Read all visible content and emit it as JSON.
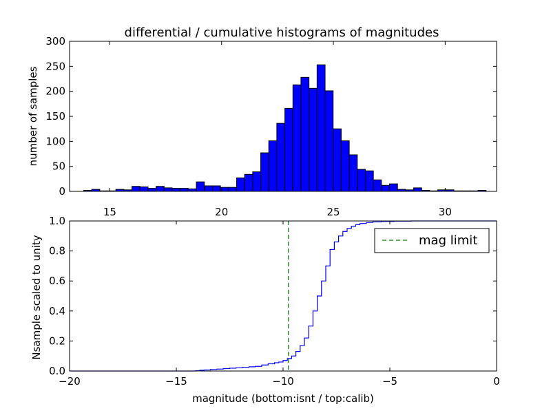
{
  "chart_data": [
    {
      "type": "bar",
      "title": "differential / cumulative histograms of magnitudes",
      "xlabel": "",
      "ylabel": "number of samples",
      "xlim": [
        13.2,
        32.3
      ],
      "ylim": [
        0,
        300
      ],
      "bar_color": "#0000ff",
      "bin_width": 0.36,
      "x_ticks": [
        15,
        20,
        25,
        30
      ],
      "y_ticks": [
        0,
        50,
        100,
        150,
        200,
        250,
        300
      ],
      "bins": [
        {
          "x": 13.83,
          "y": 2
        },
        {
          "x": 14.19,
          "y": 4
        },
        {
          "x": 14.55,
          "y": 1
        },
        {
          "x": 14.91,
          "y": 1
        },
        {
          "x": 15.27,
          "y": 4
        },
        {
          "x": 15.63,
          "y": 3
        },
        {
          "x": 15.99,
          "y": 10
        },
        {
          "x": 16.35,
          "y": 9
        },
        {
          "x": 16.71,
          "y": 6
        },
        {
          "x": 17.07,
          "y": 10
        },
        {
          "x": 17.43,
          "y": 7
        },
        {
          "x": 17.79,
          "y": 6
        },
        {
          "x": 18.15,
          "y": 6
        },
        {
          "x": 18.51,
          "y": 5
        },
        {
          "x": 18.87,
          "y": 19
        },
        {
          "x": 19.23,
          "y": 11
        },
        {
          "x": 19.59,
          "y": 11
        },
        {
          "x": 19.95,
          "y": 8
        },
        {
          "x": 20.31,
          "y": 8
        },
        {
          "x": 20.67,
          "y": 27
        },
        {
          "x": 21.03,
          "y": 34
        },
        {
          "x": 21.39,
          "y": 39
        },
        {
          "x": 21.75,
          "y": 77
        },
        {
          "x": 22.11,
          "y": 101
        },
        {
          "x": 22.47,
          "y": 136
        },
        {
          "x": 22.83,
          "y": 166
        },
        {
          "x": 23.19,
          "y": 213
        },
        {
          "x": 23.55,
          "y": 228
        },
        {
          "x": 23.91,
          "y": 206
        },
        {
          "x": 24.27,
          "y": 253
        },
        {
          "x": 24.63,
          "y": 201
        },
        {
          "x": 24.99,
          "y": 125
        },
        {
          "x": 25.35,
          "y": 101
        },
        {
          "x": 25.71,
          "y": 73
        },
        {
          "x": 26.07,
          "y": 44
        },
        {
          "x": 26.43,
          "y": 41
        },
        {
          "x": 26.79,
          "y": 23
        },
        {
          "x": 27.15,
          "y": 12
        },
        {
          "x": 27.51,
          "y": 15
        },
        {
          "x": 27.87,
          "y": 4
        },
        {
          "x": 28.23,
          "y": 3
        },
        {
          "x": 28.59,
          "y": 7
        },
        {
          "x": 28.95,
          "y": 2
        },
        {
          "x": 29.31,
          "y": 1
        },
        {
          "x": 29.67,
          "y": 3
        },
        {
          "x": 30.03,
          "y": 3
        },
        {
          "x": 30.39,
          "y": 1
        },
        {
          "x": 30.75,
          "y": 1
        },
        {
          "x": 31.11,
          "y": 1
        },
        {
          "x": 31.47,
          "y": 2
        }
      ]
    },
    {
      "type": "line",
      "title": "",
      "xlabel": "magnitude (bottom:isnt / top:calib)",
      "ylabel": "Nsample scaled to unity",
      "xlim": [
        -20,
        0
      ],
      "ylim": [
        0,
        1
      ],
      "x_ticks": [
        -20,
        -15,
        -10,
        -5,
        0
      ],
      "y_ticks": [
        0.0,
        0.2,
        0.4,
        0.6,
        0.8,
        1.0
      ],
      "x_tick_labels": [
        "−20",
        "−15",
        "−10",
        "−5",
        "0"
      ],
      "y_tick_labels": [
        "0.0",
        "0.2",
        "0.4",
        "0.6",
        "0.8",
        "1.0"
      ],
      "legend_position": "top-right",
      "series": [
        {
          "name": "",
          "color": "#0000ff",
          "style": "steps",
          "points": [
            [
              -14.3,
              0.0
            ],
            [
              -14.1,
              0.002
            ],
            [
              -13.9,
              0.005
            ],
            [
              -13.7,
              0.007
            ],
            [
              -13.4,
              0.01
            ],
            [
              -13.1,
              0.013
            ],
            [
              -12.8,
              0.016
            ],
            [
              -12.5,
              0.019
            ],
            [
              -12.2,
              0.022
            ],
            [
              -11.9,
              0.025
            ],
            [
              -11.6,
              0.028
            ],
            [
              -11.3,
              0.031
            ],
            [
              -11.0,
              0.04
            ],
            [
              -10.7,
              0.048
            ],
            [
              -10.4,
              0.055
            ],
            [
              -10.2,
              0.06
            ],
            [
              -10.0,
              0.07
            ],
            [
              -9.8,
              0.083
            ],
            [
              -9.6,
              0.1
            ],
            [
              -9.4,
              0.13
            ],
            [
              -9.2,
              0.17
            ],
            [
              -9.0,
              0.22
            ],
            [
              -8.8,
              0.3
            ],
            [
              -8.6,
              0.4
            ],
            [
              -8.4,
              0.5
            ],
            [
              -8.2,
              0.6
            ],
            [
              -8.0,
              0.7
            ],
            [
              -7.8,
              0.81
            ],
            [
              -7.6,
              0.86
            ],
            [
              -7.4,
              0.9
            ],
            [
              -7.2,
              0.93
            ],
            [
              -7.0,
              0.95
            ],
            [
              -6.8,
              0.965
            ],
            [
              -6.6,
              0.975
            ],
            [
              -6.4,
              0.983
            ],
            [
              -6.1,
              0.99
            ],
            [
              -5.8,
              0.994
            ],
            [
              -5.4,
              0.997
            ],
            [
              -4.8,
              0.999
            ],
            [
              -4.0,
              1.0
            ],
            [
              0.0,
              1.0
            ]
          ]
        },
        {
          "name": "mag limit",
          "color": "#008000",
          "style": "dashed",
          "x": -9.75
        }
      ]
    }
  ]
}
